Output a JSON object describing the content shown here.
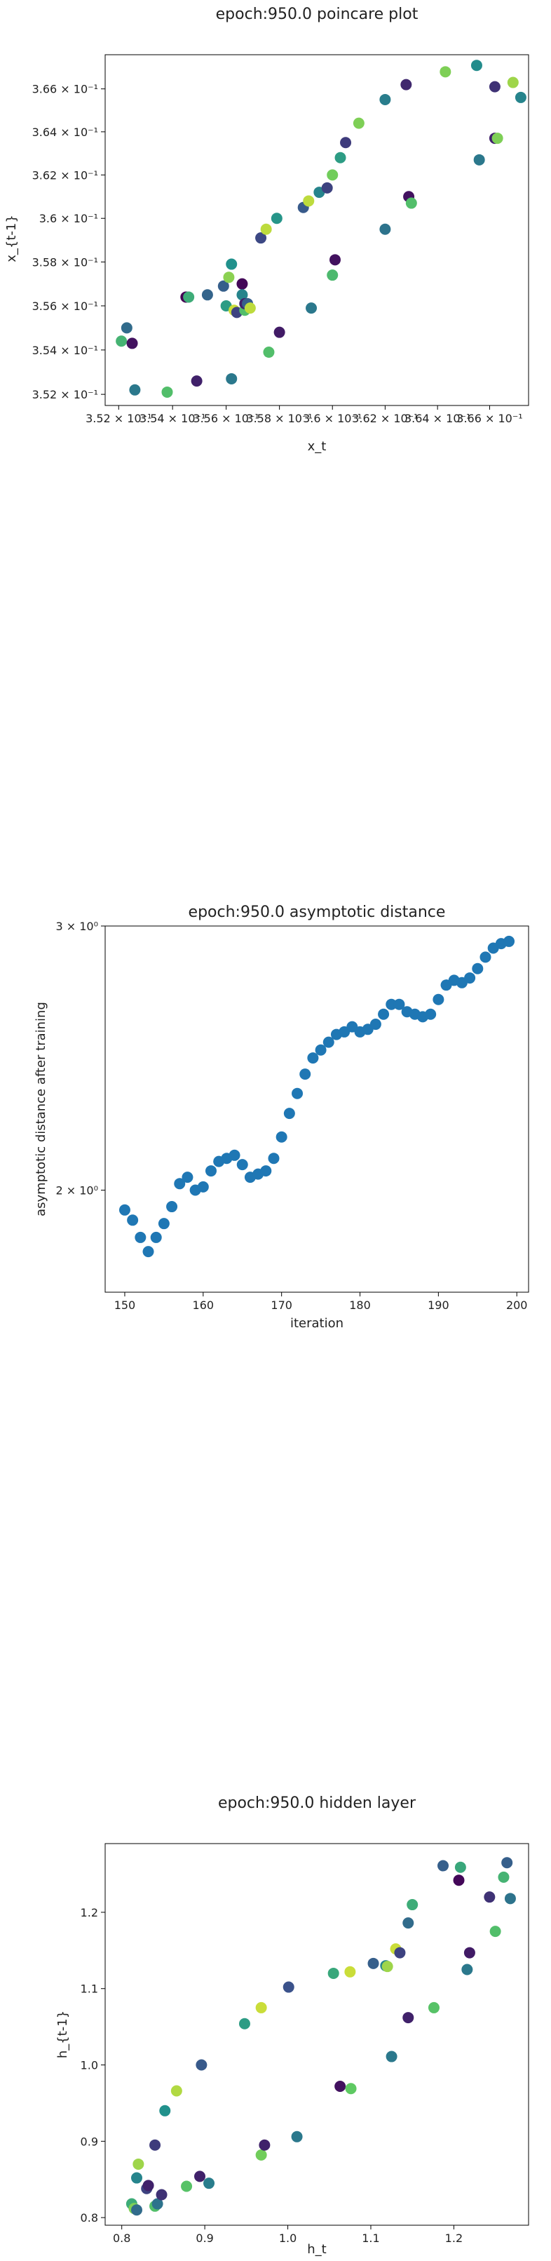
{
  "chart_data": [
    {
      "type": "scatter",
      "title": "epoch:950.0 poincare plot",
      "xlabel": "x_t",
      "ylabel": "x_{t-1}",
      "xscale": "log",
      "yscale": "log",
      "xlim": [
        0.3515,
        0.3675
      ],
      "ylim": [
        0.3515,
        0.3676
      ],
      "xticks": [
        0.352,
        0.354,
        0.356,
        0.358,
        0.36,
        0.362,
        0.364,
        0.366
      ],
      "xtick_labels": [
        "3.52 × 10⁻¹",
        "3.54 × 10⁻¹",
        "3.56 × 10⁻¹",
        "3.58 × 10⁻¹",
        "3.6 × 10⁻¹",
        "3.62 × 10⁻¹",
        "3.64 × 10⁻¹",
        "3.66 × 10⁻¹"
      ],
      "yticks": [
        0.352,
        0.354,
        0.356,
        0.358,
        0.36,
        0.362,
        0.364,
        0.366
      ],
      "ytick_labels": [
        "3.52 × 10⁻¹",
        "3.54 × 10⁻¹",
        "3.56 × 10⁻¹",
        "3.58 × 10⁻¹",
        "3.6 × 10⁻¹",
        "3.62 × 10⁻¹",
        "3.64 × 10⁻¹",
        "3.66 × 10⁻¹"
      ],
      "points": [
        {
          "x": 0.3523,
          "y": 0.355,
          "c": 0.35
        },
        {
          "x": 0.3521,
          "y": 0.3544,
          "c": 0.65
        },
        {
          "x": 0.3525,
          "y": 0.3543,
          "c": 0.05
        },
        {
          "x": 0.3526,
          "y": 0.3522,
          "c": 0.4
        },
        {
          "x": 0.3538,
          "y": 0.3521,
          "c": 0.7
        },
        {
          "x": 0.3545,
          "y": 0.3564,
          "c": 0.0
        },
        {
          "x": 0.3546,
          "y": 0.3564,
          "c": 0.62
        },
        {
          "x": 0.3549,
          "y": 0.3526,
          "c": 0.1
        },
        {
          "x": 0.3553,
          "y": 0.3565,
          "c": 0.32
        },
        {
          "x": 0.3559,
          "y": 0.3569,
          "c": 0.3
        },
        {
          "x": 0.356,
          "y": 0.356,
          "c": 0.55
        },
        {
          "x": 0.3561,
          "y": 0.3573,
          "c": 0.82
        },
        {
          "x": 0.3562,
          "y": 0.3579,
          "c": 0.5
        },
        {
          "x": 0.3562,
          "y": 0.3527,
          "c": 0.4
        },
        {
          "x": 0.3563,
          "y": 0.3558,
          "c": 0.92
        },
        {
          "x": 0.3564,
          "y": 0.3557,
          "c": 0.2
        },
        {
          "x": 0.3566,
          "y": 0.357,
          "c": 0.02
        },
        {
          "x": 0.3566,
          "y": 0.3565,
          "c": 0.45
        },
        {
          "x": 0.3567,
          "y": 0.3558,
          "c": 0.7
        },
        {
          "x": 0.3567,
          "y": 0.3561,
          "c": 0.1
        },
        {
          "x": 0.3568,
          "y": 0.3561,
          "c": 0.3
        },
        {
          "x": 0.3569,
          "y": 0.3559,
          "c": 0.9
        },
        {
          "x": 0.3573,
          "y": 0.3591,
          "c": 0.22
        },
        {
          "x": 0.3575,
          "y": 0.3595,
          "c": 0.9
        },
        {
          "x": 0.3576,
          "y": 0.3539,
          "c": 0.7
        },
        {
          "x": 0.3579,
          "y": 0.36,
          "c": 0.52
        },
        {
          "x": 0.358,
          "y": 0.3548,
          "c": 0.08
        },
        {
          "x": 0.3589,
          "y": 0.3605,
          "c": 0.28
        },
        {
          "x": 0.3591,
          "y": 0.3608,
          "c": 0.9
        },
        {
          "x": 0.3592,
          "y": 0.3559,
          "c": 0.4
        },
        {
          "x": 0.3595,
          "y": 0.3612,
          "c": 0.45
        },
        {
          "x": 0.3598,
          "y": 0.3614,
          "c": 0.2
        },
        {
          "x": 0.36,
          "y": 0.362,
          "c": 0.78
        },
        {
          "x": 0.36,
          "y": 0.3574,
          "c": 0.68
        },
        {
          "x": 0.3601,
          "y": 0.3581,
          "c": 0.05
        },
        {
          "x": 0.3603,
          "y": 0.3628,
          "c": 0.55
        },
        {
          "x": 0.3605,
          "y": 0.3635,
          "c": 0.18
        },
        {
          "x": 0.361,
          "y": 0.3644,
          "c": 0.8
        },
        {
          "x": 0.362,
          "y": 0.3595,
          "c": 0.38
        },
        {
          "x": 0.362,
          "y": 0.3655,
          "c": 0.42
        },
        {
          "x": 0.3628,
          "y": 0.3662,
          "c": 0.12
        },
        {
          "x": 0.3629,
          "y": 0.361,
          "c": 0.05
        },
        {
          "x": 0.363,
          "y": 0.3607,
          "c": 0.7
        },
        {
          "x": 0.3643,
          "y": 0.3668,
          "c": 0.8
        },
        {
          "x": 0.3655,
          "y": 0.3671,
          "c": 0.48
        },
        {
          "x": 0.3656,
          "y": 0.3627,
          "c": 0.4
        },
        {
          "x": 0.3662,
          "y": 0.3637,
          "c": 0.1
        },
        {
          "x": 0.3662,
          "y": 0.3661,
          "c": 0.15
        },
        {
          "x": 0.3663,
          "y": 0.3637,
          "c": 0.8
        },
        {
          "x": 0.3669,
          "y": 0.3663,
          "c": 0.85
        },
        {
          "x": 0.3672,
          "y": 0.3656,
          "c": 0.45
        }
      ]
    },
    {
      "type": "scatter",
      "title": "epoch:950.0 asymptotic distance",
      "xlabel": "iteration",
      "ylabel": "asymptotic distance after training",
      "yscale": "log",
      "xlim": [
        147.5,
        201.5
      ],
      "ylim": [
        1.71,
        3.0
      ],
      "xticks": [
        150,
        160,
        170,
        180,
        190,
        200
      ],
      "xtick_labels": [
        "150",
        "160",
        "170",
        "180",
        "190",
        "200"
      ],
      "yticks": [
        2,
        3
      ],
      "ytick_labels": [
        "2 × 10⁰",
        "3 × 10⁰"
      ],
      "color": "#1f77b4",
      "x": [
        150,
        151,
        152,
        153,
        154,
        155,
        156,
        157,
        158,
        159,
        160,
        161,
        162,
        163,
        164,
        165,
        166,
        167,
        168,
        169,
        170,
        171,
        172,
        173,
        174,
        175,
        176,
        177,
        178,
        179,
        180,
        181,
        182,
        183,
        184,
        185,
        186,
        187,
        188,
        189,
        190,
        191,
        192,
        193,
        194,
        195,
        196,
        197,
        198,
        199
      ],
      "y": [
        1.94,
        1.91,
        1.86,
        1.82,
        1.86,
        1.9,
        1.95,
        2.02,
        2.04,
        2.0,
        2.01,
        2.06,
        2.09,
        2.1,
        2.11,
        2.08,
        2.04,
        2.05,
        2.06,
        2.1,
        2.17,
        2.25,
        2.32,
        2.39,
        2.45,
        2.48,
        2.51,
        2.54,
        2.55,
        2.57,
        2.55,
        2.56,
        2.58,
        2.62,
        2.66,
        2.66,
        2.63,
        2.62,
        2.61,
        2.62,
        2.68,
        2.74,
        2.76,
        2.75,
        2.77,
        2.81,
        2.86,
        2.9,
        2.92,
        2.93
      ]
    },
    {
      "type": "scatter",
      "title": "epoch:950.0 hidden layer",
      "xlabel": "h_t",
      "ylabel": "h_{t-1}",
      "xlim": [
        0.78,
        1.29
      ],
      "ylim": [
        0.79,
        1.29
      ],
      "xticks": [
        0.8,
        0.9,
        1.0,
        1.1,
        1.2
      ],
      "xtick_labels": [
        "0.8",
        "0.9",
        "1.0",
        "1.1",
        "1.2"
      ],
      "yticks": [
        0.8,
        0.9,
        1.0,
        1.1,
        1.2
      ],
      "ytick_labels": [
        "0.8",
        "0.9",
        "1.0",
        "1.1",
        "1.2"
      ],
      "points": [
        {
          "x": 0.812,
          "y": 0.818,
          "c": 0.62
        },
        {
          "x": 0.815,
          "y": 0.812,
          "c": 0.8
        },
        {
          "x": 0.818,
          "y": 0.852,
          "c": 0.45
        },
        {
          "x": 0.818,
          "y": 0.81,
          "c": 0.35
        },
        {
          "x": 0.82,
          "y": 0.87,
          "c": 0.85
        },
        {
          "x": 0.83,
          "y": 0.838,
          "c": 0.2
        },
        {
          "x": 0.832,
          "y": 0.842,
          "c": 0.1
        },
        {
          "x": 0.84,
          "y": 0.895,
          "c": 0.18
        },
        {
          "x": 0.84,
          "y": 0.815,
          "c": 0.7
        },
        {
          "x": 0.843,
          "y": 0.818,
          "c": 0.38
        },
        {
          "x": 0.848,
          "y": 0.83,
          "c": 0.15
        },
        {
          "x": 0.852,
          "y": 0.94,
          "c": 0.5
        },
        {
          "x": 0.866,
          "y": 0.966,
          "c": 0.88
        },
        {
          "x": 0.878,
          "y": 0.841,
          "c": 0.72
        },
        {
          "x": 0.894,
          "y": 0.854,
          "c": 0.1
        },
        {
          "x": 0.896,
          "y": 1.0,
          "c": 0.28
        },
        {
          "x": 0.905,
          "y": 0.845,
          "c": 0.42
        },
        {
          "x": 0.948,
          "y": 1.054,
          "c": 0.55
        },
        {
          "x": 0.968,
          "y": 1.075,
          "c": 0.92
        },
        {
          "x": 0.968,
          "y": 0.882,
          "c": 0.78
        },
        {
          "x": 0.972,
          "y": 0.895,
          "c": 0.1
        },
        {
          "x": 1.001,
          "y": 1.102,
          "c": 0.25
        },
        {
          "x": 1.011,
          "y": 0.906,
          "c": 0.4
        },
        {
          "x": 1.055,
          "y": 1.12,
          "c": 0.6
        },
        {
          "x": 1.063,
          "y": 0.972,
          "c": 0.05
        },
        {
          "x": 1.075,
          "y": 1.122,
          "c": 0.92
        },
        {
          "x": 1.076,
          "y": 0.969,
          "c": 0.75
        },
        {
          "x": 1.103,
          "y": 1.133,
          "c": 0.3
        },
        {
          "x": 1.118,
          "y": 1.13,
          "c": 0.45
        },
        {
          "x": 1.12,
          "y": 1.129,
          "c": 0.85
        },
        {
          "x": 1.125,
          "y": 1.011,
          "c": 0.4
        },
        {
          "x": 1.13,
          "y": 1.152,
          "c": 0.92
        },
        {
          "x": 1.135,
          "y": 1.147,
          "c": 0.2
        },
        {
          "x": 1.145,
          "y": 1.062,
          "c": 0.1
        },
        {
          "x": 1.145,
          "y": 1.186,
          "c": 0.35
        },
        {
          "x": 1.15,
          "y": 1.21,
          "c": 0.62
        },
        {
          "x": 1.176,
          "y": 1.075,
          "c": 0.72
        },
        {
          "x": 1.187,
          "y": 1.261,
          "c": 0.3
        },
        {
          "x": 1.206,
          "y": 1.242,
          "c": 0.02
        },
        {
          "x": 1.208,
          "y": 1.259,
          "c": 0.6
        },
        {
          "x": 1.216,
          "y": 1.125,
          "c": 0.4
        },
        {
          "x": 1.219,
          "y": 1.147,
          "c": 0.08
        },
        {
          "x": 1.243,
          "y": 1.22,
          "c": 0.15
        },
        {
          "x": 1.25,
          "y": 1.175,
          "c": 0.7
        },
        {
          "x": 1.26,
          "y": 1.246,
          "c": 0.65
        },
        {
          "x": 1.264,
          "y": 1.265,
          "c": 0.3
        },
        {
          "x": 1.268,
          "y": 1.218,
          "c": 0.38
        }
      ]
    }
  ]
}
